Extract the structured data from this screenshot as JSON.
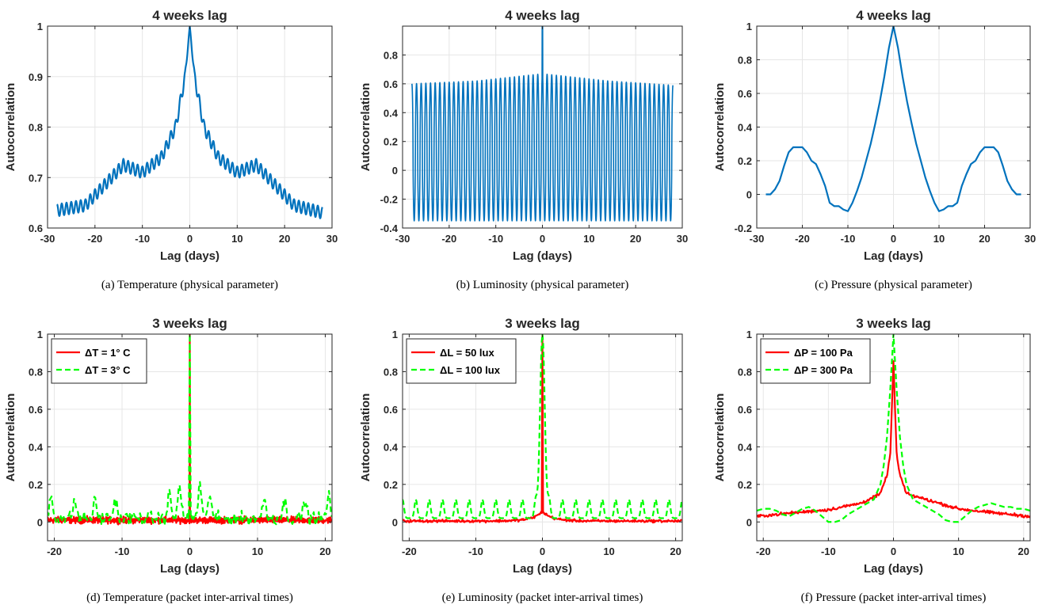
{
  "chart_data": [
    {
      "type": "line",
      "title": "4 weeks lag",
      "xlabel": "Lag (days)",
      "ylabel": "Autocorrelation",
      "caption": "(a) Temperature (physical parameter)",
      "xlim": [
        -30,
        30
      ],
      "ylim": [
        0.6,
        1
      ],
      "xticks": [
        -30,
        -20,
        -10,
        0,
        10,
        20,
        30
      ],
      "yticks": [
        0.6,
        0.7,
        0.8,
        0.9,
        1
      ],
      "ytick_labels": [
        "0.6",
        "0.7",
        "0.8",
        "0.9",
        "1"
      ],
      "grid": true,
      "series": [
        {
          "color": "#0072BD",
          "style": "solid",
          "envelope_x": [
            -28,
            -22,
            -18,
            -14,
            -10,
            -6,
            -3,
            -1,
            0,
            1,
            3,
            6,
            10,
            14,
            18,
            22,
            28
          ],
          "envelope_y": [
            0.635,
            0.645,
            0.685,
            0.725,
            0.71,
            0.74,
            0.8,
            0.9,
            1.0,
            0.9,
            0.8,
            0.74,
            0.71,
            0.725,
            0.685,
            0.645,
            0.63
          ],
          "daily_oscillation_amplitude": 0.012,
          "period_days": 1
        }
      ]
    },
    {
      "type": "line",
      "title": "4 weeks lag",
      "xlabel": "Lag (days)",
      "ylabel": "Autocorrelation",
      "caption": "(b) Luminosity (physical parameter)",
      "xlim": [
        -30,
        30
      ],
      "ylim": [
        -0.4,
        1
      ],
      "xticks": [
        -30,
        -20,
        -10,
        0,
        10,
        20,
        30
      ],
      "yticks": [
        -0.4,
        -0.2,
        0,
        0.2,
        0.4,
        0.6,
        0.8
      ],
      "ytick_labels": [
        "-0.4",
        "-0.2",
        "0",
        "0.2",
        "0.4",
        "0.6",
        "0.8"
      ],
      "grid": true,
      "series": [
        {
          "color": "#0072BD",
          "style": "solid",
          "peak_x": [
            -28,
            -14,
            0,
            14,
            28
          ],
          "peak_y": [
            0.6,
            0.62,
            0.67,
            0.62,
            0.59
          ],
          "trough_y": -0.35,
          "peak_at_zero": 1.0,
          "period_days": 1
        }
      ]
    },
    {
      "type": "line",
      "title": "4 weeks lag",
      "xlabel": "Lag (days)",
      "ylabel": "Autocorrelation",
      "caption": "(c) Pressure (physical parameter)",
      "xlim": [
        -30,
        30
      ],
      "ylim": [
        -0.2,
        1
      ],
      "xticks": [
        -30,
        -20,
        -10,
        0,
        10,
        20,
        30
      ],
      "yticks": [
        -0.2,
        0,
        0.2,
        0.4,
        0.6,
        0.8,
        1
      ],
      "ytick_labels": [
        "-0.2",
        "0",
        "0.2",
        "0.4",
        "0.6",
        "0.8",
        "1"
      ],
      "grid": true,
      "series": [
        {
          "color": "#0072BD",
          "style": "solid",
          "x": [
            -28,
            -27,
            -26,
            -25,
            -24,
            -23,
            -22,
            -21,
            -20,
            -19,
            -18,
            -17,
            -16,
            -15,
            -14,
            -13,
            -12,
            -11,
            -10,
            -9,
            -8,
            -7,
            -6,
            -5,
            -4,
            -3,
            -2,
            -1,
            0,
            1,
            2,
            3,
            4,
            5,
            6,
            7,
            8,
            9,
            10,
            11,
            12,
            13,
            14,
            15,
            16,
            17,
            18,
            19,
            20,
            21,
            22,
            23,
            24,
            25,
            26,
            27,
            28
          ],
          "y": [
            0.0,
            0.0,
            0.03,
            0.08,
            0.17,
            0.25,
            0.28,
            0.28,
            0.28,
            0.25,
            0.2,
            0.18,
            0.12,
            0.05,
            -0.05,
            -0.07,
            -0.07,
            -0.09,
            -0.1,
            -0.05,
            0.02,
            0.1,
            0.2,
            0.3,
            0.42,
            0.55,
            0.7,
            0.87,
            1.0,
            0.87,
            0.7,
            0.55,
            0.42,
            0.3,
            0.2,
            0.1,
            0.02,
            -0.05,
            -0.1,
            -0.09,
            -0.07,
            -0.07,
            -0.05,
            0.05,
            0.12,
            0.18,
            0.2,
            0.25,
            0.28,
            0.28,
            0.28,
            0.25,
            0.17,
            0.08,
            0.03,
            0.0,
            0.0
          ]
        }
      ]
    },
    {
      "type": "line",
      "title": "3 weeks lag",
      "xlabel": "Lag (days)",
      "ylabel": "Autocorrelation",
      "caption": "(d) Temperature (packet inter-arrival times)",
      "xlim": [
        -21,
        21
      ],
      "ylim": [
        -0.1,
        1
      ],
      "xticks": [
        -20,
        -10,
        0,
        10,
        20
      ],
      "yticks": [
        0,
        0.2,
        0.4,
        0.6,
        0.8,
        1
      ],
      "ytick_labels": [
        "0",
        "0.2",
        "0.4",
        "0.6",
        "0.8",
        "1"
      ],
      "grid": true,
      "legend_position": "top-left",
      "series": [
        {
          "name": "ΔT = 1° C",
          "color": "#FF0000",
          "style": "solid",
          "baseline": 0.01,
          "noise": 0.025,
          "peak_at_zero": 1.0
        },
        {
          "name": "ΔT = 3° C",
          "color": "#00FF00",
          "style": "dashed",
          "baseline": 0.02,
          "noise": 0.05,
          "bumps_x": [
            -20.5,
            -17,
            -14,
            -11,
            -3,
            -1.5,
            1.5,
            3,
            11,
            14,
            17,
            20.5
          ],
          "bumps_y": [
            0.14,
            0.12,
            0.11,
            0.12,
            0.15,
            0.2,
            0.2,
            0.15,
            0.12,
            0.11,
            0.12,
            0.14
          ],
          "peak_at_zero": 1.0
        }
      ]
    },
    {
      "type": "line",
      "title": "3 weeks lag",
      "xlabel": "Lag (days)",
      "ylabel": "Autocorrelation",
      "caption": "(e) Luminosity (packet inter-arrival times)",
      "xlim": [
        -21,
        21
      ],
      "ylim": [
        -0.1,
        1
      ],
      "xticks": [
        -20,
        -10,
        0,
        10,
        20
      ],
      "yticks": [
        0,
        0.2,
        0.4,
        0.6,
        0.8,
        1
      ],
      "ytick_labels": [
        "0",
        "0.2",
        "0.4",
        "0.6",
        "0.8",
        "1"
      ],
      "grid": true,
      "legend_position": "top-left",
      "series": [
        {
          "name": "ΔL = 50 lux",
          "color": "#FF0000",
          "style": "solid",
          "baseline": 0.005,
          "noise": 0.01,
          "near_zero": 0.05,
          "peak_at_zero": 1.0
        },
        {
          "name": "ΔL = 100 lux",
          "color": "#00FF00",
          "style": "dashed",
          "baseline": 0.02,
          "bump_height": 0.1,
          "bump_period_days": 2,
          "peak_at_zero": 1.0
        }
      ]
    },
    {
      "type": "line",
      "title": "3 weeks lag",
      "xlabel": "Lag (days)",
      "ylabel": "Autocorrelation",
      "caption": "(f) Pressure (packet inter-arrival times)",
      "xlim": [
        -21,
        21
      ],
      "ylim": [
        -0.1,
        1
      ],
      "xticks": [
        -20,
        -10,
        0,
        10,
        20
      ],
      "yticks": [
        0,
        0.2,
        0.4,
        0.6,
        0.8,
        1
      ],
      "ytick_labels": [
        "0",
        "0.2",
        "0.4",
        "0.6",
        "0.8",
        "1"
      ],
      "grid": true,
      "legend_position": "top-left",
      "series": [
        {
          "name": "ΔP = 100 Pa",
          "color": "#FF0000",
          "style": "solid",
          "envelope_x": [
            -21,
            -15,
            -10,
            -5,
            -2,
            -1,
            -0.5,
            0,
            0.5,
            1,
            2,
            5,
            10,
            15,
            21
          ],
          "envelope_y": [
            0.03,
            0.05,
            0.065,
            0.1,
            0.15,
            0.25,
            0.35,
            0.85,
            0.35,
            0.25,
            0.15,
            0.12,
            0.07,
            0.05,
            0.03
          ],
          "noise": 0.012
        },
        {
          "name": "ΔP = 300 Pa",
          "color": "#00FF00",
          "style": "dashed",
          "x": [
            -21,
            -20,
            -19,
            -18,
            -17,
            -16,
            -15,
            -14,
            -13,
            -12,
            -11,
            -10,
            -9,
            -8,
            -7,
            -6,
            -5,
            -4,
            -3,
            -2,
            -1.5,
            -1,
            -0.5,
            0,
            0.5,
            1,
            1.5,
            2,
            3,
            4,
            5,
            6,
            7,
            8,
            9,
            10,
            11,
            12,
            13,
            14,
            15,
            16,
            17,
            18,
            19,
            20,
            21
          ],
          "y": [
            0.06,
            0.07,
            0.07,
            0.06,
            0.04,
            0.03,
            0.05,
            0.07,
            0.08,
            0.06,
            0.03,
            0.0,
            0.0,
            0.01,
            0.04,
            0.06,
            0.08,
            0.1,
            0.12,
            0.2,
            0.3,
            0.45,
            0.7,
            1.0,
            0.7,
            0.45,
            0.3,
            0.2,
            0.12,
            0.1,
            0.08,
            0.06,
            0.04,
            0.01,
            0.0,
            0.0,
            0.03,
            0.06,
            0.08,
            0.09,
            0.1,
            0.09,
            0.08,
            0.08,
            0.07,
            0.07,
            0.06
          ]
        }
      ]
    }
  ]
}
